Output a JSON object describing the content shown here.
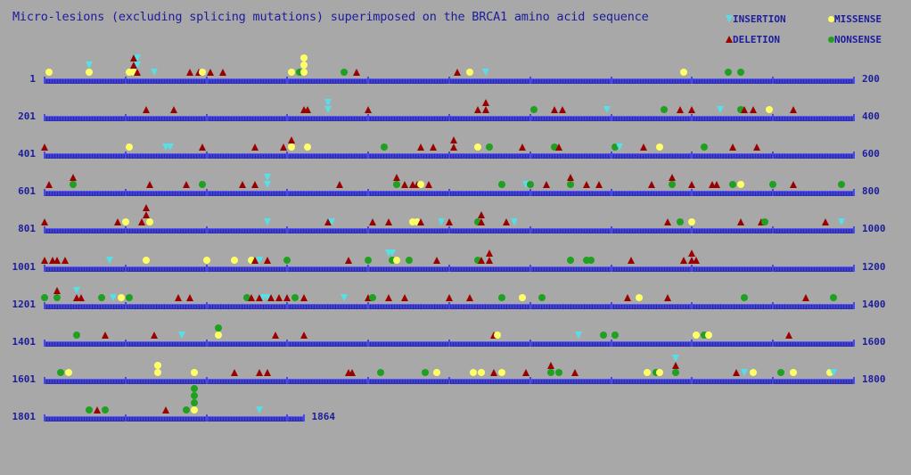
{
  "title": "Micro-lesions (excluding splicing mutations) superimposed on the BRCA1 amino acid sequence",
  "legend": {
    "insertion": "INSERTION",
    "missense": "MISSENSE",
    "deletion": "DELETION",
    "nonsense": "NONSENSE"
  },
  "colors": {
    "background": "#a8a8a8",
    "text": "#1c1c9c",
    "insertion": "#55e0e8",
    "deletion": "#9a0000",
    "missense": "#ffff66",
    "nonsense": "#20a020"
  },
  "rows": [
    {
      "start": 1,
      "end": 200,
      "left": "1",
      "right": "200",
      "markers": [
        [
          "M",
          2,
          0
        ],
        [
          "I",
          12,
          1
        ],
        [
          "M",
          12,
          0
        ],
        [
          "D",
          23,
          2
        ],
        [
          "D",
          23,
          1
        ],
        [
          "I",
          24,
          2
        ],
        [
          "I",
          24,
          1
        ],
        [
          "M",
          22,
          0
        ],
        [
          "M",
          23,
          0
        ],
        [
          "D",
          24,
          0
        ],
        [
          "I",
          28,
          0
        ],
        [
          "D",
          37,
          0
        ],
        [
          "D",
          39,
          0
        ],
        [
          "M",
          40,
          0
        ],
        [
          "D",
          42,
          0
        ],
        [
          "D",
          45,
          0
        ],
        [
          "M",
          62,
          0
        ],
        [
          "N",
          64,
          0
        ],
        [
          "M",
          65,
          0
        ],
        [
          "M",
          65,
          1
        ],
        [
          "M",
          65,
          2
        ],
        [
          "N",
          75,
          0
        ],
        [
          "D",
          78,
          0
        ],
        [
          "D",
          103,
          0
        ],
        [
          "M",
          106,
          0
        ],
        [
          "I",
          110,
          0
        ],
        [
          "M",
          159,
          0
        ],
        [
          "N",
          170,
          0
        ],
        [
          "N",
          173,
          0
        ]
      ]
    },
    {
      "start": 201,
      "end": 400,
      "left": "201",
      "right": "400",
      "markers": [
        [
          "D",
          226,
          0
        ],
        [
          "D",
          233,
          0
        ],
        [
          "D",
          265,
          0
        ],
        [
          "D",
          266,
          0
        ],
        [
          "I",
          271,
          1
        ],
        [
          "I",
          271,
          0
        ],
        [
          "D",
          281,
          0
        ],
        [
          "D",
          308,
          0
        ],
        [
          "D",
          310,
          0
        ],
        [
          "D",
          310,
          1
        ],
        [
          "N",
          322,
          0
        ],
        [
          "D",
          327,
          0
        ],
        [
          "D",
          329,
          0
        ],
        [
          "I",
          340,
          0
        ],
        [
          "N",
          354,
          0
        ],
        [
          "D",
          358,
          0
        ],
        [
          "D",
          361,
          0
        ],
        [
          "I",
          368,
          0
        ],
        [
          "N",
          373,
          0
        ],
        [
          "D",
          374,
          0
        ],
        [
          "D",
          376,
          0
        ],
        [
          "M",
          380,
          0
        ],
        [
          "D",
          386,
          0
        ]
      ]
    },
    {
      "start": 401,
      "end": 600,
      "left": "401",
      "right": "600",
      "markers": [
        [
          "D",
          401,
          0
        ],
        [
          "M",
          422,
          0
        ],
        [
          "I",
          431,
          0
        ],
        [
          "I",
          432,
          0
        ],
        [
          "D",
          440,
          0
        ],
        [
          "D",
          453,
          0
        ],
        [
          "D",
          460,
          0
        ],
        [
          "D",
          462,
          1
        ],
        [
          "M",
          462,
          0
        ],
        [
          "M",
          466,
          0
        ],
        [
          "N",
          485,
          0
        ],
        [
          "D",
          494,
          0
        ],
        [
          "D",
          497,
          0
        ],
        [
          "D",
          502,
          0
        ],
        [
          "D",
          502,
          1
        ],
        [
          "M",
          508,
          0
        ],
        [
          "N",
          511,
          0
        ],
        [
          "D",
          519,
          0
        ],
        [
          "N",
          527,
          0
        ],
        [
          "D",
          528,
          0
        ],
        [
          "N",
          542,
          0
        ],
        [
          "I",
          543,
          0
        ],
        [
          "D",
          549,
          0
        ],
        [
          "M",
          553,
          0
        ],
        [
          "N",
          564,
          0
        ],
        [
          "D",
          571,
          0
        ],
        [
          "D",
          577,
          0
        ]
      ]
    },
    {
      "start": 601,
      "end": 800,
      "left": "601",
      "right": "800",
      "markers": [
        [
          "D",
          602,
          0
        ],
        [
          "D",
          608,
          1
        ],
        [
          "N",
          608,
          0
        ],
        [
          "D",
          627,
          0
        ],
        [
          "D",
          636,
          0
        ],
        [
          "N",
          640,
          0
        ],
        [
          "D",
          650,
          0
        ],
        [
          "D",
          653,
          0
        ],
        [
          "I",
          656,
          1
        ],
        [
          "I",
          656,
          0
        ],
        [
          "D",
          674,
          0
        ],
        [
          "D",
          688,
          1
        ],
        [
          "N",
          688,
          0
        ],
        [
          "D",
          690,
          0
        ],
        [
          "D",
          692,
          0
        ],
        [
          "D",
          693,
          0
        ],
        [
          "M",
          694,
          0
        ],
        [
          "D",
          696,
          0
        ],
        [
          "N",
          714,
          0
        ],
        [
          "I",
          720,
          0
        ],
        [
          "N",
          721,
          0
        ],
        [
          "D",
          725,
          0
        ],
        [
          "D",
          731,
          1
        ],
        [
          "N",
          731,
          0
        ],
        [
          "D",
          735,
          0
        ],
        [
          "D",
          738,
          0
        ],
        [
          "D",
          751,
          0
        ],
        [
          "D",
          756,
          1
        ],
        [
          "N",
          756,
          0
        ],
        [
          "D",
          761,
          0
        ],
        [
          "D",
          766,
          0
        ],
        [
          "D",
          767,
          0
        ],
        [
          "N",
          771,
          0
        ],
        [
          "M",
          773,
          0
        ],
        [
          "N",
          781,
          0
        ],
        [
          "D",
          786,
          0
        ],
        [
          "N",
          798,
          0
        ]
      ]
    },
    {
      "start": 801,
      "end": 1000,
      "left": "801",
      "right": "1000",
      "markers": [
        [
          "D",
          801,
          0
        ],
        [
          "D",
          819,
          0
        ],
        [
          "M",
          821,
          0
        ],
        [
          "D",
          825,
          0
        ],
        [
          "D",
          826,
          2
        ],
        [
          "D",
          826,
          1
        ],
        [
          "M",
          827,
          0
        ],
        [
          "I",
          856,
          0
        ],
        [
          "D",
          871,
          0
        ],
        [
          "I",
          872,
          0
        ],
        [
          "D",
          882,
          0
        ],
        [
          "D",
          886,
          0
        ],
        [
          "M",
          892,
          0
        ],
        [
          "M",
          893,
          0
        ],
        [
          "D",
          894,
          0
        ],
        [
          "I",
          899,
          0
        ],
        [
          "D",
          901,
          0
        ],
        [
          "N",
          908,
          0
        ],
        [
          "D",
          909,
          1
        ],
        [
          "D",
          909,
          0
        ],
        [
          "D",
          915,
          0
        ],
        [
          "I",
          917,
          0
        ],
        [
          "D",
          955,
          0
        ],
        [
          "N",
          958,
          0
        ],
        [
          "M",
          961,
          0
        ],
        [
          "D",
          973,
          0
        ],
        [
          "D",
          978,
          0
        ],
        [
          "N",
          979,
          0
        ],
        [
          "D",
          994,
          0
        ],
        [
          "I",
          998,
          0
        ]
      ]
    },
    {
      "start": 1001,
      "end": 1200,
      "left": "1001",
      "right": "1200",
      "markers": [
        [
          "D",
          1001,
          0
        ],
        [
          "D",
          1003,
          0
        ],
        [
          "D",
          1004,
          0
        ],
        [
          "D",
          1006,
          0
        ],
        [
          "I",
          1017,
          0
        ],
        [
          "M",
          1026,
          0
        ],
        [
          "M",
          1041,
          0
        ],
        [
          "M",
          1048,
          0
        ],
        [
          "M",
          1052,
          0
        ],
        [
          "D",
          1053,
          0
        ],
        [
          "I",
          1054,
          0
        ],
        [
          "D",
          1056,
          0
        ],
        [
          "N",
          1061,
          0
        ],
        [
          "D",
          1076,
          0
        ],
        [
          "N",
          1081,
          0
        ],
        [
          "I",
          1086,
          1
        ],
        [
          "I",
          1087,
          1
        ],
        [
          "N",
          1087,
          0
        ],
        [
          "M",
          1088,
          0
        ],
        [
          "N",
          1091,
          0
        ],
        [
          "D",
          1098,
          0
        ],
        [
          "N",
          1108,
          0
        ],
        [
          "D",
          1109,
          0
        ],
        [
          "D",
          1111,
          1
        ],
        [
          "D",
          1111,
          0
        ],
        [
          "N",
          1131,
          0
        ],
        [
          "N",
          1135,
          0
        ],
        [
          "N",
          1136,
          0
        ],
        [
          "D",
          1146,
          0
        ],
        [
          "D",
          1159,
          0
        ],
        [
          "D",
          1161,
          1
        ],
        [
          "D",
          1161,
          0
        ],
        [
          "D",
          1162,
          0
        ]
      ]
    },
    {
      "start": 1201,
      "end": 1400,
      "left": "1201",
      "right": "1400",
      "markers": [
        [
          "N",
          1201,
          0
        ],
        [
          "D",
          1204,
          1
        ],
        [
          "N",
          1204,
          0
        ],
        [
          "I",
          1209,
          1
        ],
        [
          "D",
          1209,
          0
        ],
        [
          "D",
          1210,
          0
        ],
        [
          "N",
          1215,
          0
        ],
        [
          "I",
          1218,
          0
        ],
        [
          "M",
          1220,
          0
        ],
        [
          "N",
          1222,
          0
        ],
        [
          "D",
          1234,
          0
        ],
        [
          "D",
          1237,
          0
        ],
        [
          "N",
          1251,
          0
        ],
        [
          "D",
          1252,
          0
        ],
        [
          "D",
          1254,
          0
        ],
        [
          "I",
          1255,
          0
        ],
        [
          "I",
          1256,
          0
        ],
        [
          "D",
          1257,
          0
        ],
        [
          "D",
          1259,
          0
        ],
        [
          "D",
          1261,
          0
        ],
        [
          "N",
          1263,
          0
        ],
        [
          "D",
          1265,
          0
        ],
        [
          "I",
          1275,
          0
        ],
        [
          "D",
          1281,
          0
        ],
        [
          "N",
          1282,
          0
        ],
        [
          "D",
          1286,
          0
        ],
        [
          "D",
          1290,
          0
        ],
        [
          "D",
          1301,
          0
        ],
        [
          "D",
          1306,
          0
        ],
        [
          "N",
          1314,
          0
        ],
        [
          "M",
          1319,
          0
        ],
        [
          "N",
          1324,
          0
        ],
        [
          "D",
          1345,
          0
        ],
        [
          "M",
          1348,
          0
        ],
        [
          "D",
          1355,
          0
        ],
        [
          "N",
          1374,
          0
        ],
        [
          "D",
          1389,
          0
        ],
        [
          "N",
          1396,
          0
        ]
      ]
    },
    {
      "start": 1401,
      "end": 1600,
      "left": "1401",
      "right": "1600",
      "markers": [
        [
          "N",
          1409,
          0
        ],
        [
          "D",
          1416,
          0
        ],
        [
          "D",
          1428,
          0
        ],
        [
          "I",
          1435,
          0
        ],
        [
          "M",
          1444,
          0
        ],
        [
          "N",
          1444,
          1
        ],
        [
          "D",
          1458,
          0
        ],
        [
          "D",
          1465,
          0
        ],
        [
          "D",
          1512,
          0
        ],
        [
          "M",
          1513,
          0
        ],
        [
          "I",
          1533,
          0
        ],
        [
          "N",
          1539,
          0
        ],
        [
          "N",
          1542,
          0
        ],
        [
          "M",
          1562,
          0
        ],
        [
          "N",
          1564,
          0
        ],
        [
          "M",
          1565,
          0
        ],
        [
          "D",
          1585,
          0
        ]
      ]
    },
    {
      "start": 1601,
      "end": 1800,
      "left": "1601",
      "right": "1800",
      "markers": [
        [
          "N",
          1605,
          0
        ],
        [
          "M",
          1607,
          0
        ],
        [
          "M",
          1629,
          1
        ],
        [
          "M",
          1629,
          0
        ],
        [
          "M",
          1638,
          0
        ],
        [
          "D",
          1648,
          0
        ],
        [
          "D",
          1654,
          0
        ],
        [
          "D",
          1656,
          0
        ],
        [
          "D",
          1676,
          0
        ],
        [
          "D",
          1677,
          0
        ],
        [
          "N",
          1684,
          0
        ],
        [
          "N",
          1695,
          0
        ],
        [
          "M",
          1698,
          0
        ],
        [
          "M",
          1707,
          0
        ],
        [
          "M",
          1709,
          0
        ],
        [
          "D",
          1712,
          0
        ],
        [
          "M",
          1714,
          0
        ],
        [
          "D",
          1720,
          0
        ],
        [
          "D",
          1726,
          1
        ],
        [
          "N",
          1726,
          0
        ],
        [
          "N",
          1728,
          0
        ],
        [
          "D",
          1732,
          0
        ],
        [
          "M",
          1750,
          0
        ],
        [
          "N",
          1752,
          0
        ],
        [
          "M",
          1753,
          0
        ],
        [
          "I",
          1757,
          2
        ],
        [
          "D",
          1757,
          1
        ],
        [
          "N",
          1757,
          0
        ],
        [
          "D",
          1772,
          0
        ],
        [
          "I",
          1774,
          0
        ],
        [
          "M",
          1776,
          0
        ],
        [
          "N",
          1783,
          0
        ],
        [
          "M",
          1786,
          0
        ],
        [
          "M",
          1795,
          0
        ],
        [
          "I",
          1796,
          0
        ]
      ]
    },
    {
      "start": 1801,
      "end": 1864,
      "left": "1801",
      "right": "1864",
      "markers": [
        [
          "N",
          1812,
          0
        ],
        [
          "D",
          1814,
          0
        ],
        [
          "N",
          1816,
          0
        ],
        [
          "D",
          1831,
          0
        ],
        [
          "N",
          1836,
          0
        ],
        [
          "M",
          1838,
          0
        ],
        [
          "N",
          1838,
          1
        ],
        [
          "N",
          1838,
          2
        ],
        [
          "N",
          1838,
          3
        ],
        [
          "I",
          1854,
          0
        ]
      ]
    }
  ]
}
